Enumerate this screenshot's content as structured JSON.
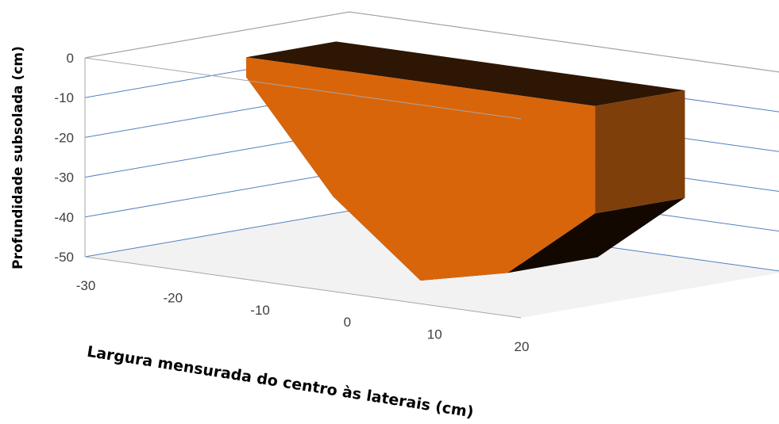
{
  "chart_data": {
    "type": "area",
    "view": "3d",
    "title": "",
    "xlabel": "Largura mensurada do centro às laterais (cm)",
    "ylabel": "Profundidade subsolada (cm)",
    "x": [
      -20,
      -10,
      0,
      10,
      20
    ],
    "y": [
      -5,
      -32,
      -50,
      -45,
      -27
    ],
    "ylim": [
      -50,
      0
    ],
    "xlim": [
      -30,
      20
    ],
    "y_ticks": [
      "0",
      "-10",
      "-20",
      "-30",
      "-40",
      "-50"
    ],
    "x_ticks": [
      "-30",
      "-20",
      "-10",
      "0",
      "10",
      "20"
    ],
    "grid": true,
    "legend": "none",
    "colors": {
      "front_face": "#D9650B",
      "top_face": "#2E1604",
      "right_face": "#7F3F0A",
      "bottom_face": "#120800",
      "floor": "#F2F2F2",
      "gridline": "#4F81BD",
      "frame": "#A6A6A6"
    }
  }
}
